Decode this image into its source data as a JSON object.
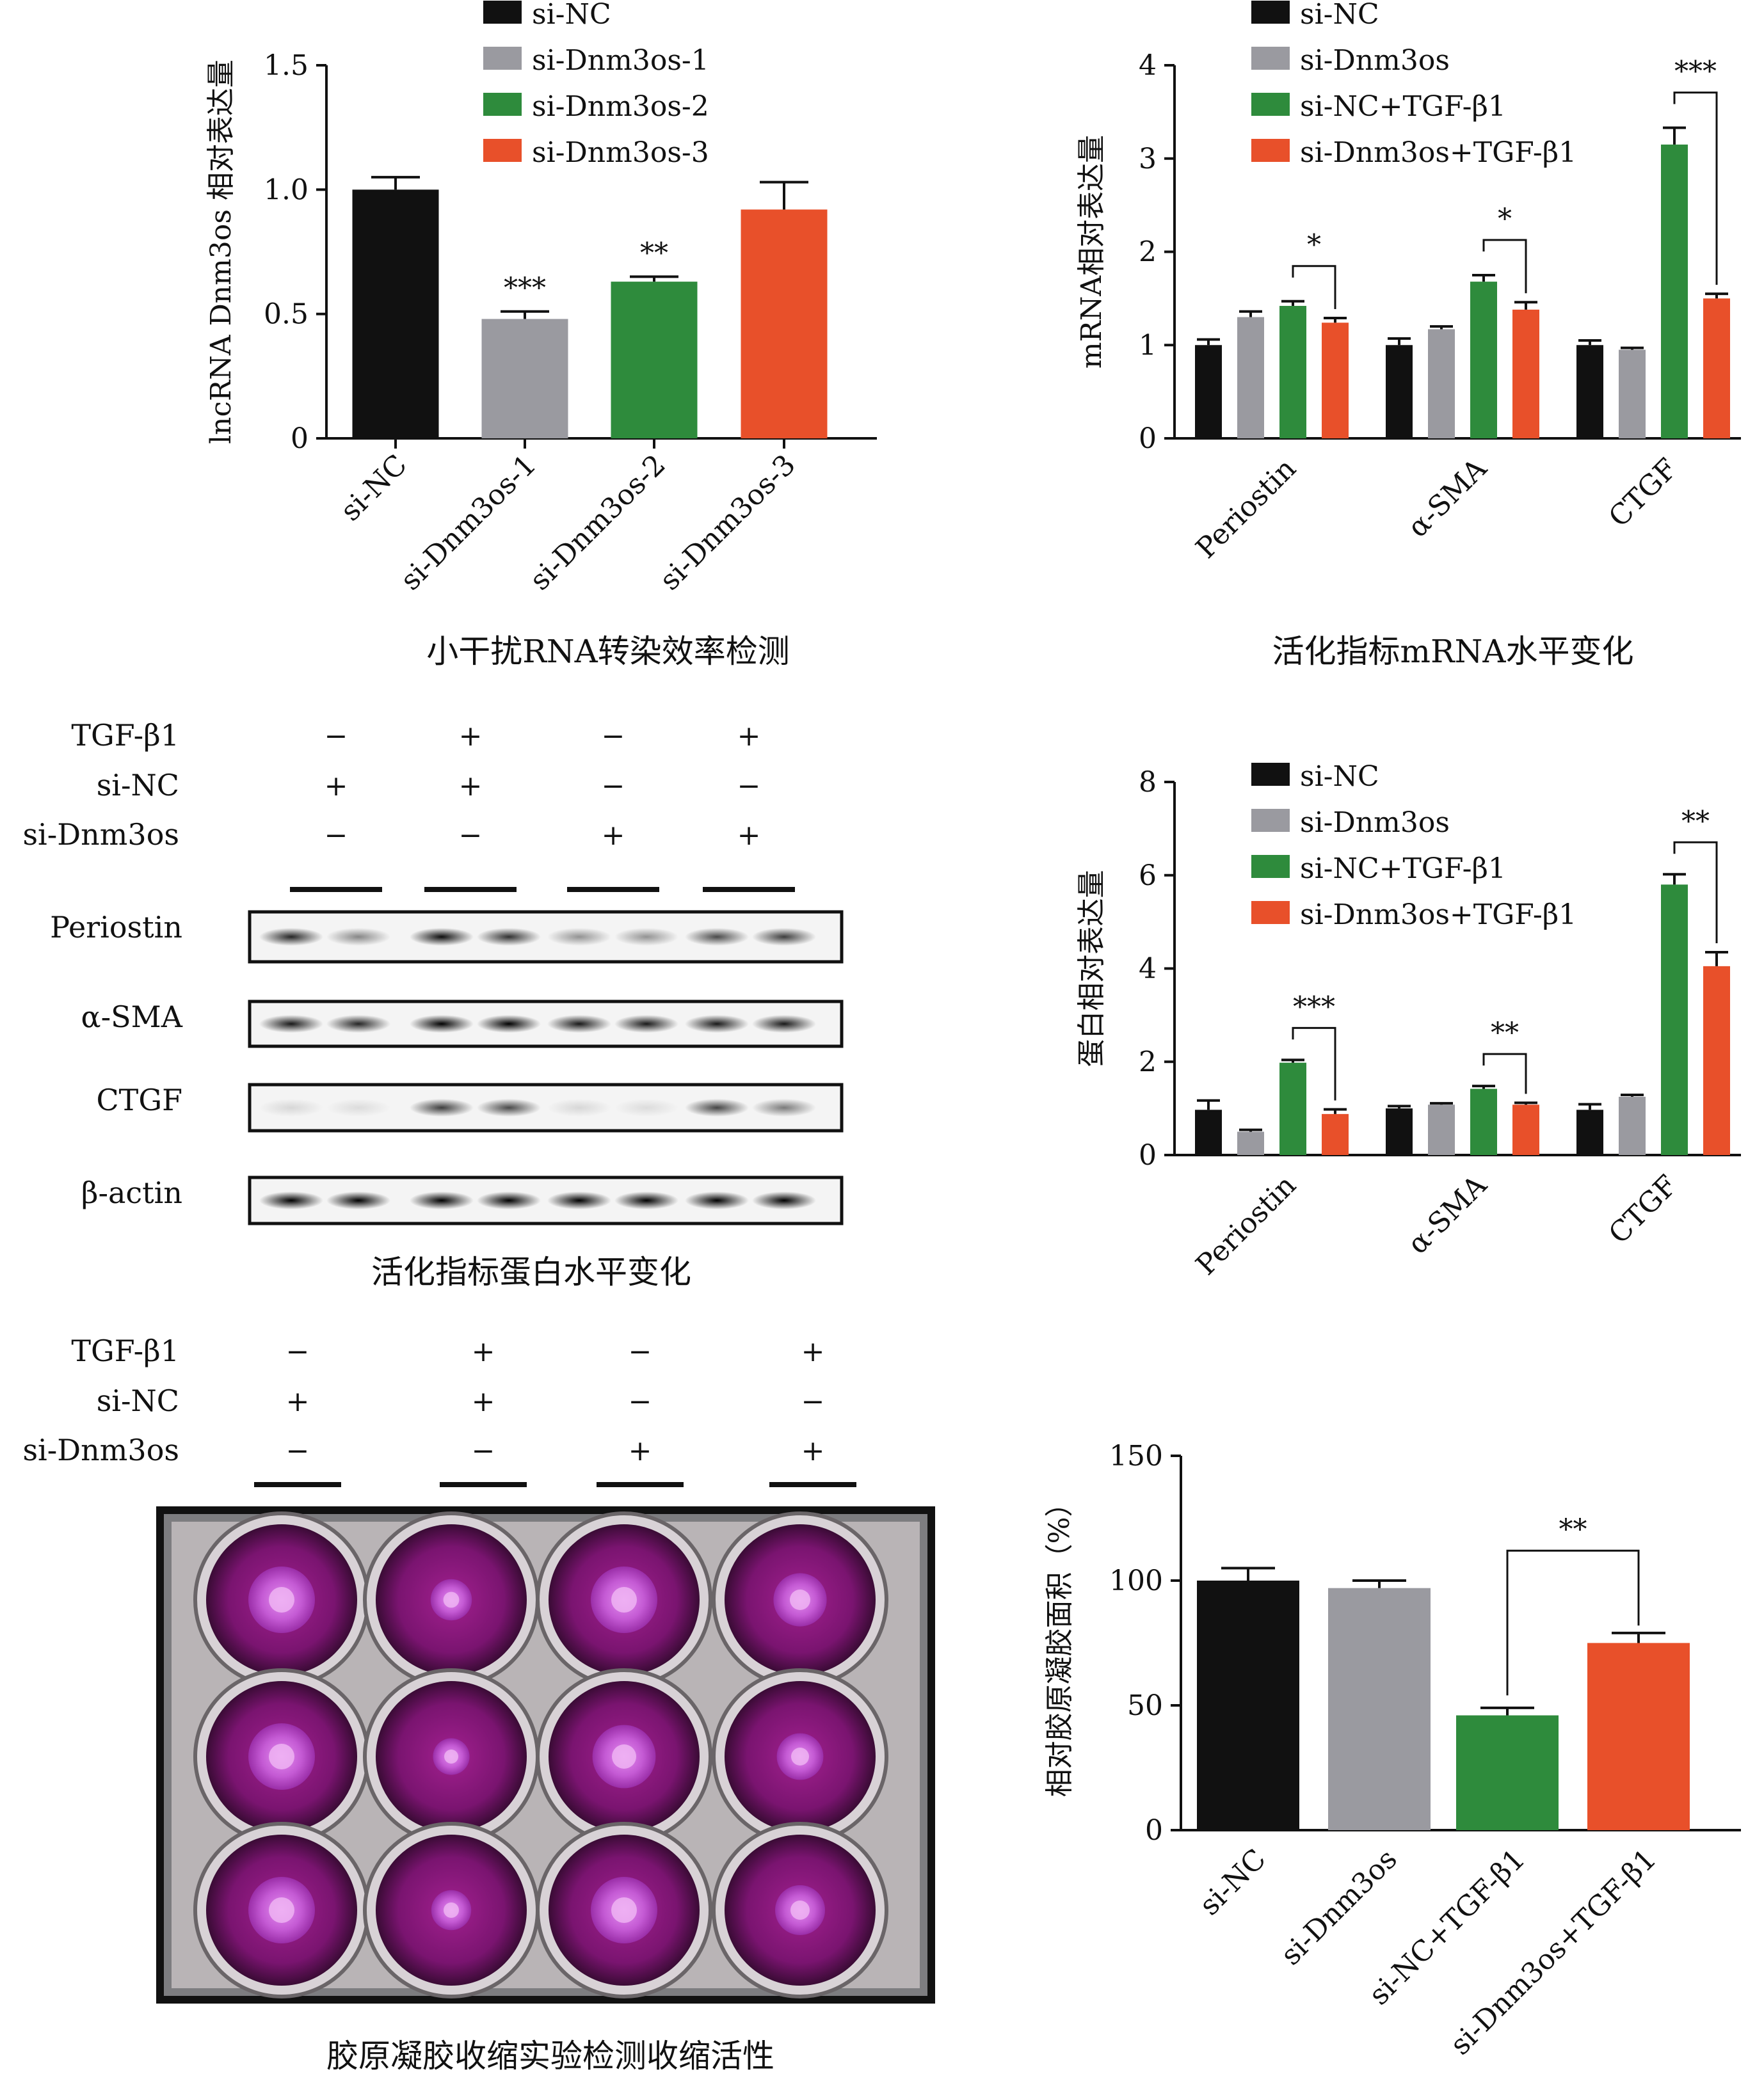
{
  "colors": {
    "black": "#111111",
    "grey": "#9a9aa0",
    "green": "#2e8b3c",
    "orange": "#e8502a"
  },
  "captions": {
    "panel_a": "小干扰RNA转染效率检测",
    "panel_b": "活化指标mRNA水平变化",
    "panel_c": "活化指标蛋白水平变化",
    "panel_e": "胶原凝胶收缩实验检测收缩活性"
  },
  "chart_data": [
    {
      "id": "transfection",
      "type": "bar",
      "ylabel": "lncRNA Dnm3os 相对表达量",
      "ylim": [
        0,
        1.5
      ],
      "yticks": [
        "0",
        "0.5",
        "1.0",
        "1.5"
      ],
      "categories": [
        "si-NC",
        "si-Dnm3os-1",
        "si-Dnm3os-2",
        "si-Dnm3os-3"
      ],
      "values": [
        1.0,
        0.48,
        0.63,
        0.92
      ],
      "errors": [
        0.05,
        0.03,
        0.02,
        0.11
      ],
      "significance": [
        "",
        "***",
        "**",
        ""
      ],
      "legend": [
        "si-NC",
        "si-Dnm3os-1",
        "si-Dnm3os-2",
        "si-Dnm3os-3"
      ]
    },
    {
      "id": "mrna",
      "type": "bar",
      "ylabel": "mRNA相对表达量",
      "ylim": [
        0,
        4
      ],
      "yticks": [
        "0",
        "1",
        "2",
        "3",
        "4"
      ],
      "categories": [
        "Periostin",
        "α-SMA",
        "CTGF"
      ],
      "legend": [
        "si-NC",
        "si-Dnm3os",
        "si-NC+TGF-β1",
        "si-Dnm3os+TGF-β1"
      ],
      "series": [
        {
          "name": "si-NC",
          "values": [
            1.0,
            1.0,
            1.0
          ],
          "errors": [
            0.06,
            0.07,
            0.05
          ]
        },
        {
          "name": "si-Dnm3os",
          "values": [
            1.3,
            1.17,
            0.95
          ],
          "errors": [
            0.06,
            0.03,
            0.02
          ]
        },
        {
          "name": "si-NC+TGF-β1",
          "values": [
            1.42,
            1.68,
            3.15
          ],
          "errors": [
            0.05,
            0.07,
            0.18
          ]
        },
        {
          "name": "si-Dnm3os+TGF-β1",
          "values": [
            1.24,
            1.38,
            1.5
          ],
          "errors": [
            0.05,
            0.08,
            0.05
          ]
        }
      ],
      "significance": [
        "*",
        "*",
        "***"
      ]
    },
    {
      "id": "protein",
      "type": "bar",
      "ylabel": "蛋白相对表达量",
      "ylim": [
        0,
        8
      ],
      "yticks": [
        "0",
        "2",
        "4",
        "6",
        "8"
      ],
      "categories": [
        "Periostin",
        "α-SMA",
        "CTGF"
      ],
      "legend": [
        "si-NC",
        "si-Dnm3os",
        "si-NC+TGF-β1",
        "si-Dnm3os+TGF-β1"
      ],
      "series": [
        {
          "name": "si-NC",
          "values": [
            0.97,
            1.0,
            0.97
          ],
          "errors": [
            0.2,
            0.05,
            0.12
          ]
        },
        {
          "name": "si-Dnm3os",
          "values": [
            0.5,
            1.08,
            1.25
          ],
          "errors": [
            0.04,
            0.03,
            0.04
          ]
        },
        {
          "name": "si-NC+TGF-β1",
          "values": [
            1.98,
            1.42,
            5.8
          ],
          "errors": [
            0.06,
            0.06,
            0.22
          ]
        },
        {
          "name": "si-Dnm3os+TGF-β1",
          "values": [
            0.88,
            1.08,
            4.05
          ],
          "errors": [
            0.1,
            0.04,
            0.3
          ]
        }
      ],
      "significance": [
        "***",
        "**",
        "**"
      ]
    },
    {
      "id": "collagen",
      "type": "bar",
      "ylabel": "相对胶原凝胶面积（%）",
      "ylim": [
        0,
        150
      ],
      "yticks": [
        "0",
        "50",
        "100",
        "150"
      ],
      "categories": [
        "si-NC",
        "si-Dnm3os",
        "si-NC+TGF-β1",
        "si-Dnm3os+TGF-β1"
      ],
      "values": [
        100,
        97,
        46,
        75
      ],
      "errors": [
        5,
        3,
        3,
        4
      ],
      "significance": "**"
    }
  ],
  "western": {
    "conditions": [
      {
        "label": "TGF-β1",
        "values": [
          "−",
          "+",
          "−",
          "+"
        ]
      },
      {
        "label": "si-NC",
        "values": [
          "+",
          "+",
          "−",
          "−"
        ]
      },
      {
        "label": "si-Dnm3os",
        "values": [
          "−",
          "−",
          "+",
          "+"
        ]
      }
    ],
    "proteins": [
      {
        "name": "Periostin",
        "intensity": [
          0.85,
          0.45,
          0.95,
          0.8,
          0.4,
          0.4,
          0.7,
          0.75
        ]
      },
      {
        "name": "α-SMA",
        "intensity": [
          0.9,
          0.85,
          1.0,
          1.0,
          0.9,
          0.9,
          0.9,
          0.9
        ]
      },
      {
        "name": "CTGF",
        "intensity": [
          0.12,
          0.1,
          0.75,
          0.7,
          0.12,
          0.1,
          0.72,
          0.5
        ]
      },
      {
        "name": "β-actin",
        "intensity": [
          1.0,
          1.0,
          1.0,
          1.0,
          1.0,
          1.0,
          1.0,
          1.0
        ]
      }
    ]
  },
  "gel": {
    "conditions": [
      {
        "label": "TGF-β1",
        "values": [
          "−",
          "+",
          "−",
          "+"
        ]
      },
      {
        "label": "si-NC",
        "values": [
          "+",
          "+",
          "−",
          "−"
        ]
      },
      {
        "label": "si-Dnm3os",
        "values": [
          "−",
          "−",
          "+",
          "+"
        ]
      }
    ],
    "disc_scale": [
      [
        1.0,
        0.62,
        1.0,
        0.8
      ],
      [
        1.0,
        0.55,
        0.95,
        0.7
      ],
      [
        1.0,
        0.6,
        1.0,
        0.75
      ]
    ]
  }
}
